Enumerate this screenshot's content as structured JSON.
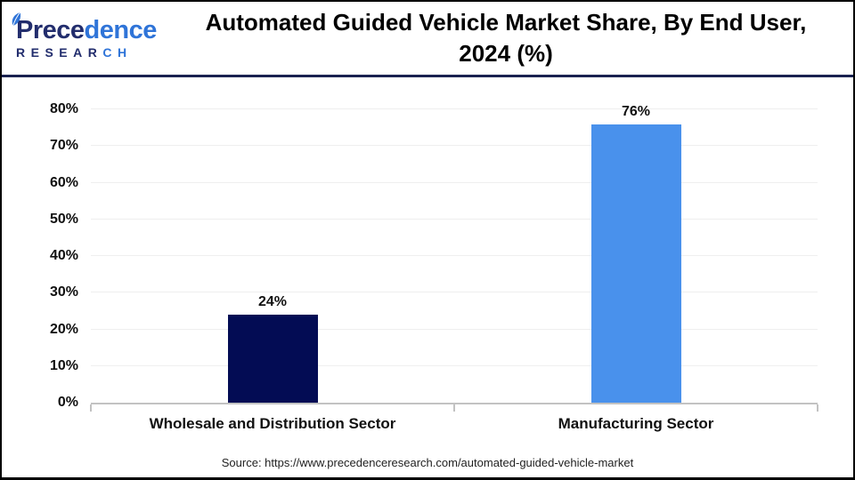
{
  "header": {
    "logo": {
      "initial": "P",
      "name_dark": "rece",
      "name_light": "dence",
      "sub_dark": "RESEAR",
      "sub_light": "CH"
    },
    "title_line1": "Automated Guided Vehicle Market Share, By End User,",
    "title_line2": "2024 (%)"
  },
  "chart_data": {
    "type": "bar",
    "title": "Automated Guided Vehicle Market Share, By End User, 2024 (%)",
    "categories": [
      "Wholesale and Distribution Sector",
      "Manufacturing Sector"
    ],
    "values": [
      24,
      76
    ],
    "value_labels": [
      "24%",
      "76%"
    ],
    "bar_colors": [
      "#030c54",
      "#4991ec"
    ],
    "xlabel": "",
    "ylabel": "",
    "ylim": [
      0,
      80
    ],
    "ytick_step": 10,
    "ytick_labels": [
      "0%",
      "10%",
      "20%",
      "30%",
      "40%",
      "50%",
      "60%",
      "70%",
      "80%"
    ],
    "grid": true,
    "legend_position": "none"
  },
  "footer": {
    "source_text": "Source: https://www.precedenceresearch.com/automated-guided-vehicle-market"
  },
  "colors": {
    "bar_wholesale": "#030c54",
    "bar_manufacturing": "#4991ec",
    "header_divider": "#1a2150",
    "gridline": "#efefef",
    "axis_line": "#c2c2c2",
    "logo_dark": "#222d6d",
    "logo_light": "#2f74d8"
  }
}
